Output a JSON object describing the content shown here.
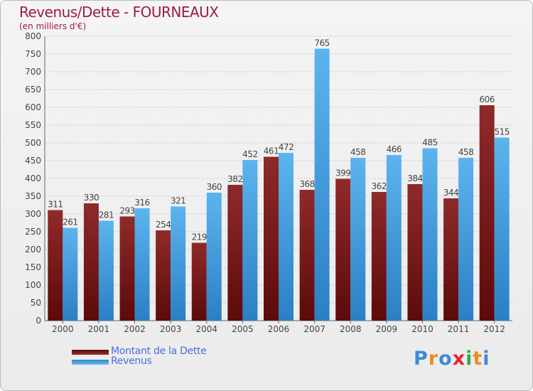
{
  "chart_data": {
    "type": "bar",
    "title": "Revenus/Dette - FOURNEAUX",
    "subtitle": "(en milliers d'€)",
    "categories": [
      "2000",
      "2001",
      "2002",
      "2003",
      "2004",
      "2005",
      "2006",
      "2007",
      "2008",
      "2009",
      "2010",
      "2011",
      "2012"
    ],
    "series": [
      {
        "name": "Montant de la Dette",
        "color": "#7a1717",
        "values": [
          311,
          330,
          293,
          254,
          219,
          382,
          461,
          368,
          399,
          362,
          384,
          344,
          606
        ]
      },
      {
        "name": "Revenus",
        "color": "#49a6e6",
        "values": [
          261,
          281,
          316,
          321,
          360,
          452,
          472,
          765,
          458,
          466,
          485,
          458,
          515
        ]
      }
    ],
    "yticks": [
      0,
      50,
      100,
      150,
      200,
      250,
      300,
      350,
      400,
      450,
      500,
      550,
      600,
      650,
      700,
      750,
      800
    ],
    "ylim": [
      0,
      800
    ],
    "grid": true,
    "legend_position": "bottom-left"
  },
  "legend": {
    "debt_label": "Montant de la Dette",
    "revenue_label": "Revenus"
  },
  "logo": {
    "letters": [
      "P",
      "r",
      "o",
      "x",
      "i",
      "t",
      "i"
    ],
    "colors": [
      "#3e8ad8",
      "#f08a1c",
      "#3e8ad8",
      "#e6262e",
      "#2fb04b",
      "#f08a1c",
      "#3e8ad8"
    ]
  }
}
